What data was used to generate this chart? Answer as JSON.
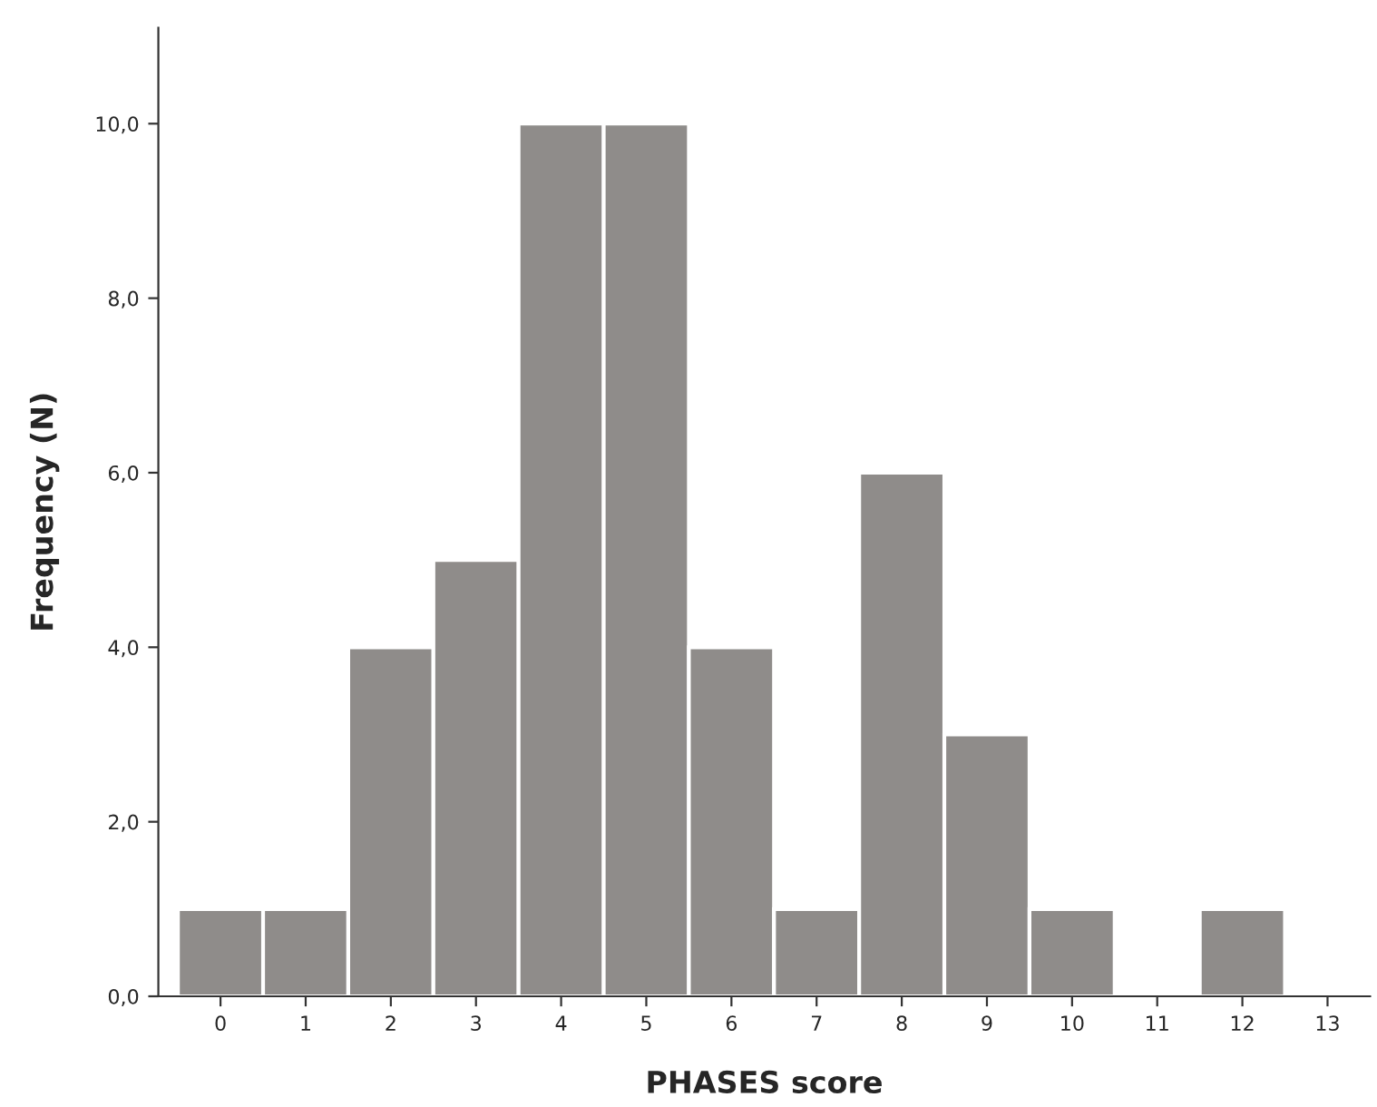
{
  "chart_data": {
    "type": "bar",
    "xlabel": "PHASES score",
    "ylabel": "Frequency (N)",
    "categories": [
      "0",
      "1",
      "2",
      "3",
      "4",
      "5",
      "6",
      "7",
      "8",
      "9",
      "10",
      "11",
      "12",
      "13"
    ],
    "values": [
      1,
      1,
      4,
      5,
      10,
      10,
      4,
      1,
      6,
      3,
      1,
      0,
      1,
      0
    ],
    "color": "#8f8c8a",
    "ylim": [
      0,
      11.1
    ],
    "yticks": [
      {
        "value": 0,
        "label": "0,0"
      },
      {
        "value": 2,
        "label": "2,0"
      },
      {
        "value": 4,
        "label": "4,0"
      },
      {
        "value": 6,
        "label": "6,0"
      },
      {
        "value": 8,
        "label": "8,0"
      },
      {
        "value": 10,
        "label": "10,0"
      }
    ],
    "grid": false,
    "legend": false
  }
}
